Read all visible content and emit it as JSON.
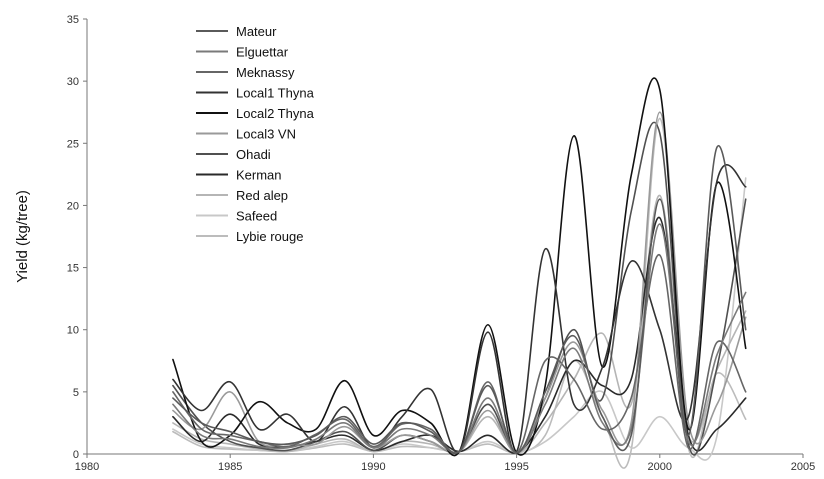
{
  "chart_data": {
    "type": "line",
    "title": "",
    "xlabel": "",
    "ylabel": "Yield (kg/tree)",
    "xlim": [
      1980,
      2005
    ],
    "ylim": [
      0,
      35
    ],
    "xticks": [
      1980,
      1985,
      1990,
      1995,
      2000,
      2005
    ],
    "yticks": [
      0,
      5,
      10,
      15,
      20,
      25,
      30,
      35
    ],
    "grid": false,
    "legend_position": "top-left",
    "x": [
      1983,
      1984,
      1985,
      1986,
      1987,
      1988,
      1989,
      1990,
      1991,
      1992,
      1993,
      1994,
      1995,
      1996,
      1997,
      1998,
      1999,
      2000,
      2001,
      2002,
      2003
    ],
    "series": [
      {
        "name": "Mateur",
        "color": "#5a5a5a",
        "values": [
          4.5,
          2.5,
          1.8,
          1.0,
          0.8,
          1.5,
          3.0,
          0.8,
          2.5,
          1.8,
          0.2,
          5.5,
          0.1,
          5.0,
          9.5,
          3.0,
          1.5,
          20.5,
          1.5,
          24.7,
          10.0
        ]
      },
      {
        "name": "Elguettar",
        "color": "#7a7a7a",
        "values": [
          4.0,
          1.5,
          1.2,
          0.6,
          0.5,
          1.2,
          2.5,
          0.5,
          2.0,
          1.5,
          0.2,
          4.5,
          0.1,
          4.0,
          8.5,
          2.5,
          2.0,
          18.5,
          1.0,
          8.0,
          13.0
        ]
      },
      {
        "name": "Meknassy",
        "color": "#666666",
        "values": [
          5.0,
          2.0,
          1.5,
          1.0,
          0.6,
          1.6,
          2.8,
          0.6,
          2.4,
          2.0,
          0.2,
          5.8,
          0.1,
          7.5,
          6.0,
          2.0,
          4.5,
          16.0,
          0.5,
          9.0,
          5.0
        ]
      },
      {
        "name": "Local1 Thyna",
        "color": "#333333",
        "values": [
          6.0,
          3.5,
          5.8,
          2.0,
          3.2,
          1.0,
          3.8,
          0.5,
          3.0,
          5.2,
          0.2,
          9.8,
          0.2,
          16.5,
          4.0,
          7.0,
          15.5,
          10.0,
          3.0,
          22.0,
          21.5
        ]
      },
      {
        "name": "Local2 Thyna",
        "color": "#111111",
        "values": [
          7.6,
          1.0,
          1.5,
          4.2,
          2.5,
          2.0,
          5.9,
          1.5,
          3.5,
          2.5,
          0.2,
          10.4,
          0.1,
          5.5,
          25.6,
          7.0,
          22.4,
          29.3,
          2.0,
          21.8,
          8.5
        ]
      },
      {
        "name": "Local3 VN",
        "color": "#9a9a9a",
        "values": [
          3.5,
          2.0,
          5.0,
          1.0,
          0.8,
          0.8,
          2.2,
          0.5,
          1.5,
          1.0,
          0.2,
          3.5,
          0.1,
          4.5,
          9.0,
          3.5,
          2.5,
          27.5,
          2.5,
          4.0,
          11.0
        ]
      },
      {
        "name": "Ohadi",
        "color": "#505050",
        "values": [
          5.5,
          2.5,
          1.0,
          0.5,
          0.3,
          1.0,
          1.8,
          0.3,
          1.5,
          1.0,
          0.2,
          4.0,
          0.1,
          4.5,
          10.0,
          4.5,
          19.5,
          25.8,
          0.8,
          7.0,
          20.5
        ]
      },
      {
        "name": "Kerman",
        "color": "#2a2a2a",
        "values": [
          3.0,
          1.0,
          3.2,
          0.8,
          0.6,
          1.0,
          1.5,
          0.3,
          1.0,
          1.5,
          0.2,
          1.5,
          0.1,
          3.0,
          7.5,
          5.5,
          6.0,
          19.0,
          1.5,
          2.0,
          4.5
        ]
      },
      {
        "name": "Red alep",
        "color": "#b5b5b5",
        "values": [
          2.5,
          1.2,
          0.8,
          0.4,
          0.2,
          0.8,
          1.2,
          0.2,
          1.0,
          0.8,
          0.2,
          3.0,
          0.1,
          2.5,
          6.0,
          9.7,
          4.0,
          20.8,
          1.5,
          6.8,
          11.5
        ]
      },
      {
        "name": "Safeed",
        "color": "#c8c8c8",
        "values": [
          2.0,
          0.8,
          0.5,
          0.3,
          0.2,
          0.6,
          1.0,
          0.2,
          0.8,
          0.5,
          0.2,
          1.0,
          0.1,
          1.0,
          3.0,
          5.0,
          0.5,
          3.0,
          0.5,
          1.5,
          22.2
        ]
      },
      {
        "name": "Lybie rouge",
        "color": "#bcbcbc",
        "values": [
          1.8,
          0.6,
          0.4,
          0.3,
          0.2,
          0.5,
          0.8,
          0.2,
          0.6,
          0.5,
          0.2,
          0.8,
          0.1,
          1.5,
          7.5,
          3.0,
          0.3,
          27.0,
          0.5,
          6.5,
          2.8
        ]
      }
    ]
  }
}
